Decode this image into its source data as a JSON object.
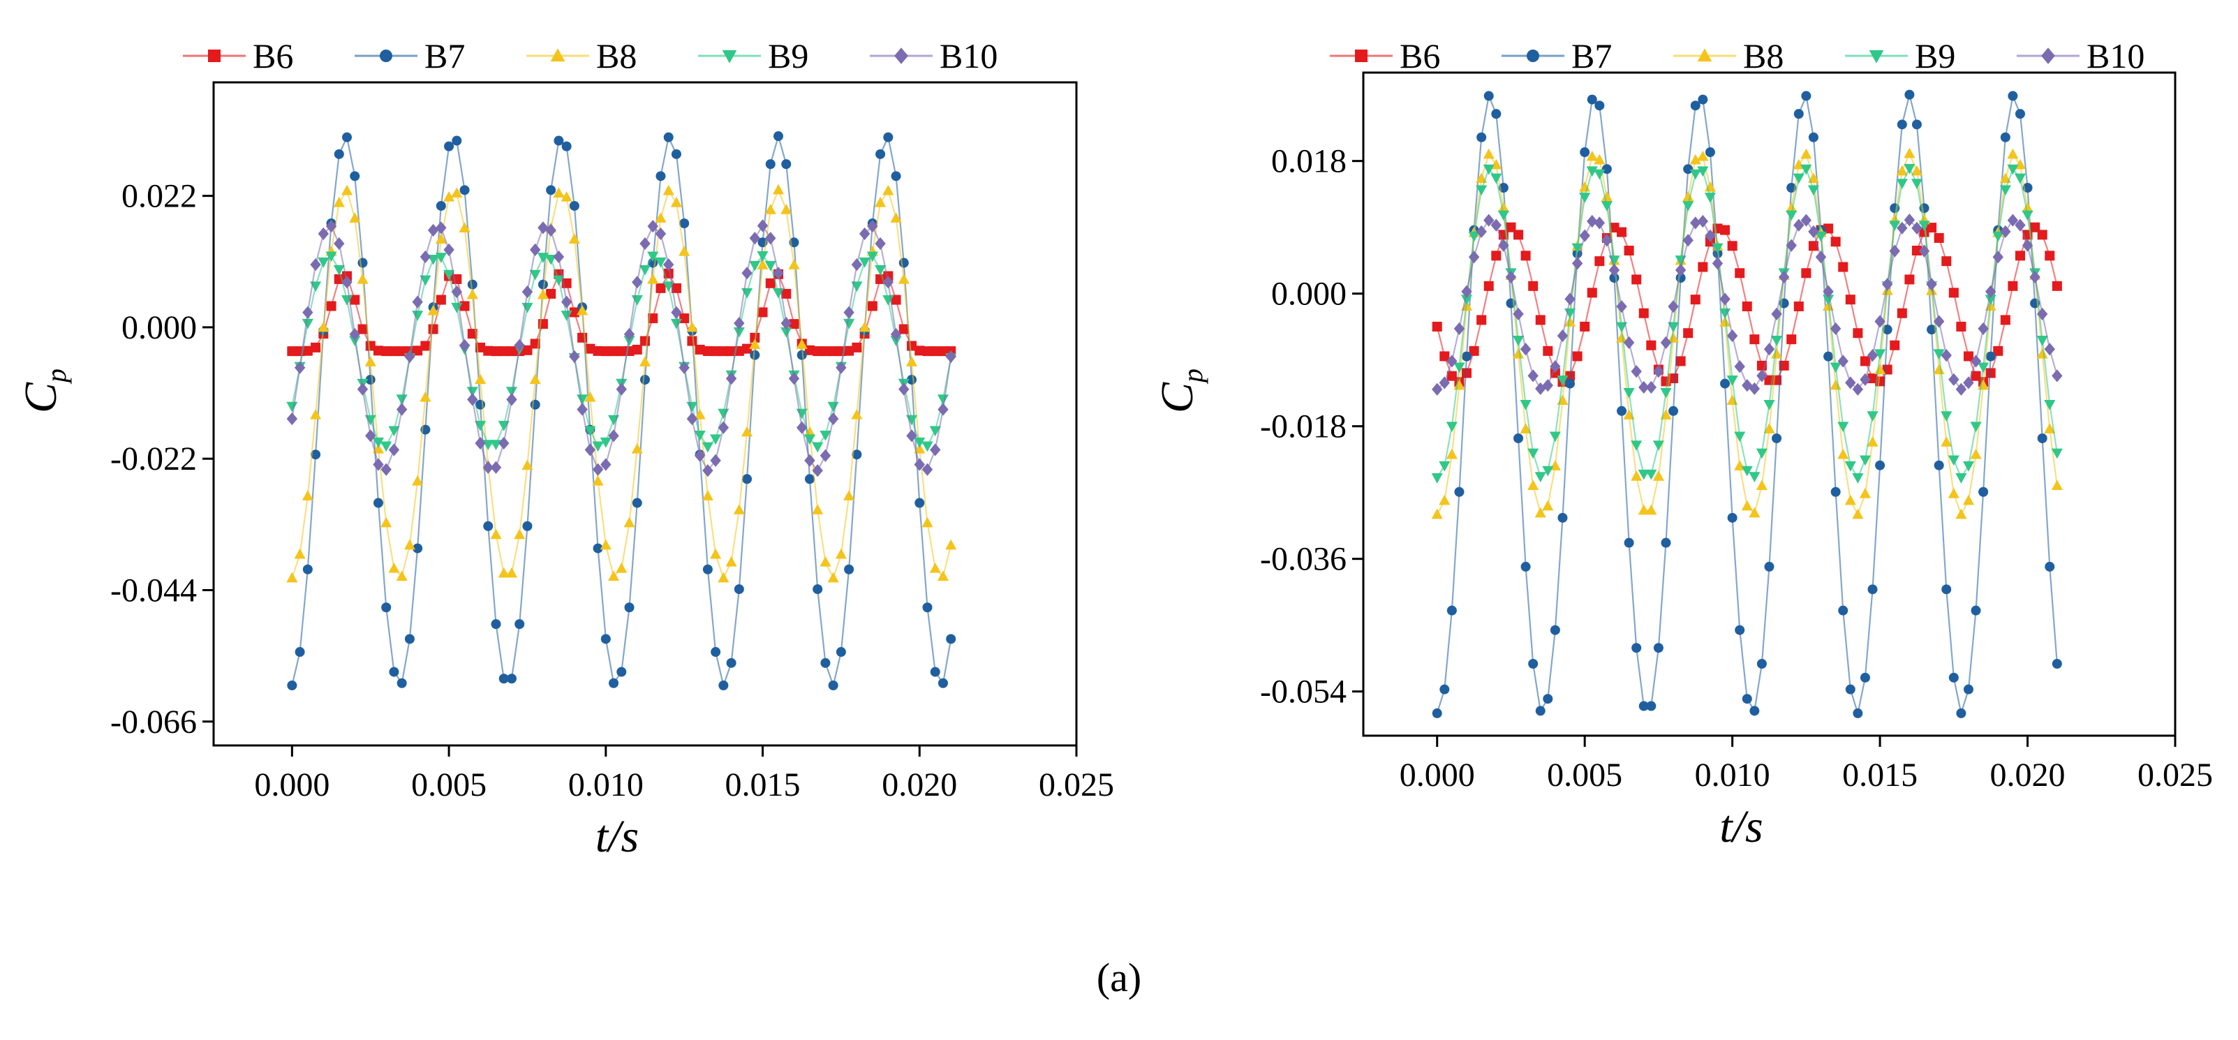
{
  "caption": "(a)",
  "series_styles": [
    {
      "name": "B6",
      "color": "#e41a1c",
      "marker": "square"
    },
    {
      "name": "B7",
      "color": "#1f5fa0",
      "marker": "circle"
    },
    {
      "name": "B8",
      "color": "#f4c41b",
      "marker": "triangle-up"
    },
    {
      "name": "B9",
      "color": "#2fc888",
      "marker": "triangle-down"
    },
    {
      "name": "B10",
      "color": "#7b6bb0",
      "marker": "diamond"
    }
  ],
  "chart_data": [
    {
      "type": "line",
      "title": "",
      "xlabel": "t/s",
      "ylabel": "C",
      "ylabel_sub": "p",
      "xlim": [
        -0.0025,
        0.025
      ],
      "ylim": [
        -0.07,
        0.041
      ],
      "xticks": [
        0.0,
        0.005,
        0.01,
        0.015,
        0.02,
        0.025
      ],
      "xtick_labels": [
        "0.000",
        "0.005",
        "0.010",
        "0.015",
        "0.020",
        "0.025"
      ],
      "yticks": [
        0.022,
        0.0,
        -0.022,
        -0.044,
        -0.066
      ],
      "ytick_labels": [
        "0.022",
        "0.000",
        "-0.022",
        "-0.044",
        "-0.066"
      ],
      "legend": [
        "B6",
        "B7",
        "B8",
        "B9",
        "B10"
      ],
      "legend_position": "top",
      "x_range": [
        0,
        0.021
      ],
      "num_points": 85,
      "period": 0.00345,
      "series": [
        {
          "name": "B6",
          "shape": "peaked",
          "mean": -0.0005,
          "max": 0.009,
          "min": -0.004,
          "phase": 0.00165,
          "width": 0.14
        },
        {
          "name": "B7",
          "shape": "sine",
          "mean": -0.0085,
          "max": 0.032,
          "min": -0.06,
          "phase": 0.0017
        },
        {
          "name": "B8",
          "shape": "sine",
          "mean": -0.004,
          "max": 0.023,
          "min": -0.042,
          "phase": 0.0017
        },
        {
          "name": "B9",
          "shape": "sine",
          "mean": -0.004,
          "max": 0.012,
          "min": -0.02,
          "phase": 0.0012
        },
        {
          "name": "B10",
          "shape": "sine",
          "mean": -0.003,
          "max": 0.017,
          "min": -0.024,
          "phase": 0.0012
        }
      ]
    },
    {
      "type": "line",
      "title": "",
      "xlabel": "t/s",
      "ylabel": "C",
      "ylabel_sub": "p",
      "xlim": [
        -0.0025,
        0.025
      ],
      "ylim": [
        -0.06,
        0.03
      ],
      "xticks": [
        0.0,
        0.005,
        0.01,
        0.015,
        0.02,
        0.025
      ],
      "xtick_labels": [
        "0.000",
        "0.005",
        "0.010",
        "0.015",
        "0.020",
        "0.025"
      ],
      "yticks": [
        0.018,
        0.0,
        -0.018,
        -0.036,
        -0.054
      ],
      "ytick_labels": [
        "0.018",
        "0.000",
        "-0.018",
        "-0.036",
        "-0.054"
      ],
      "legend": [
        "B6",
        "B7",
        "B8",
        "B9",
        "B10"
      ],
      "legend_position": "top",
      "x_range": [
        0,
        0.021
      ],
      "num_points": 85,
      "period": 0.00355,
      "series": [
        {
          "name": "B6",
          "shape": "sine",
          "mean": -0.002,
          "max": 0.009,
          "min": -0.012,
          "phase": 0.0025
        },
        {
          "name": "B7",
          "shape": "sine",
          "mean": -0.0145,
          "max": 0.027,
          "min": -0.057,
          "phase": 0.0018
        },
        {
          "name": "B8",
          "shape": "sine",
          "mean": -0.006,
          "max": 0.019,
          "min": -0.03,
          "phase": 0.0018
        },
        {
          "name": "B9",
          "shape": "sine",
          "mean": -0.004,
          "max": 0.017,
          "min": -0.025,
          "phase": 0.0018
        },
        {
          "name": "B10",
          "shape": "sine",
          "mean": -0.002,
          "max": 0.01,
          "min": -0.013,
          "phase": 0.0018
        }
      ]
    }
  ]
}
